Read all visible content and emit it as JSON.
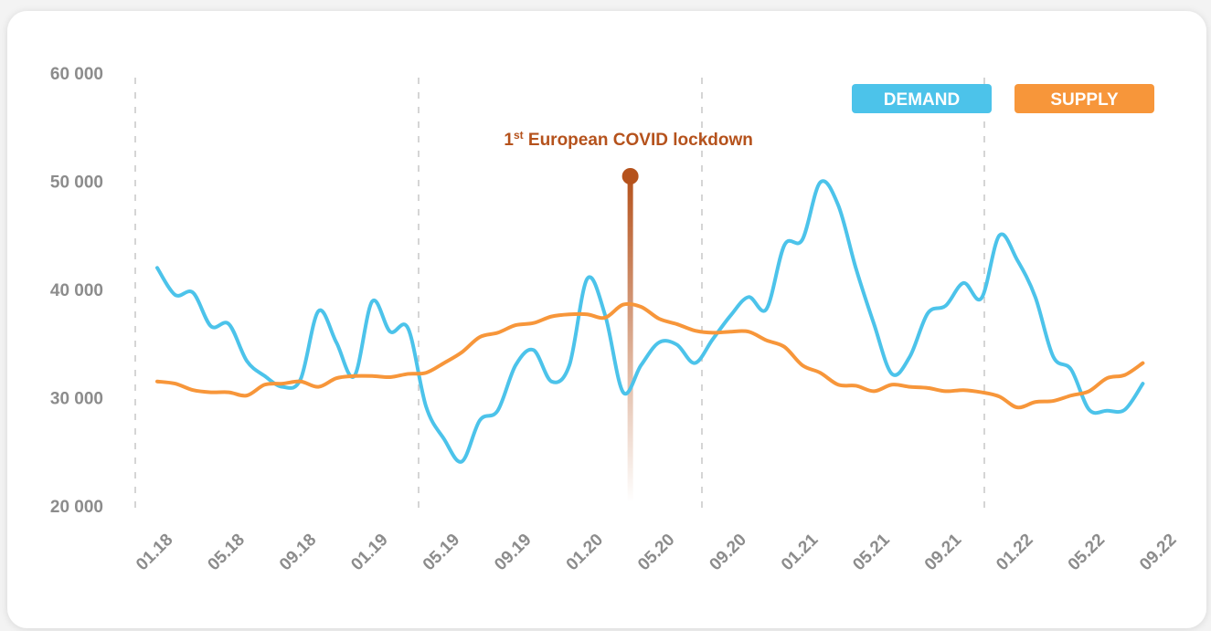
{
  "chart_data": {
    "type": "line",
    "x": [
      0,
      1,
      2,
      3,
      4,
      5,
      6,
      7,
      8,
      9,
      10,
      11,
      12,
      13,
      14,
      15,
      16,
      17,
      18,
      19,
      20,
      21,
      22,
      23,
      24,
      25,
      26,
      27,
      28,
      29,
      30,
      31,
      32,
      33,
      34,
      35,
      36,
      37,
      38,
      39,
      40,
      41,
      42,
      43,
      44,
      45,
      46,
      47,
      48,
      49,
      50,
      51,
      52,
      53,
      54,
      55
    ],
    "series": [
      {
        "name": "DEMAND",
        "color": "#4cc3ea",
        "values": [
          42000,
          39500,
          39700,
          36600,
          36800,
          33400,
          32000,
          31000,
          31700,
          38000,
          35100,
          32000,
          38900,
          36100,
          36400,
          29200,
          26200,
          24100,
          27900,
          28800,
          33000,
          34400,
          31500,
          33000,
          41000,
          37600,
          30500,
          33000,
          35100,
          34900,
          33200,
          35400,
          37600,
          39300,
          38200,
          44100,
          44600,
          49900,
          47800,
          41900,
          36800,
          32200,
          33800,
          37800,
          38500,
          40600,
          39200,
          45000,
          42700,
          39300,
          33800,
          32600,
          28900,
          28800,
          28900,
          31300
        ]
      },
      {
        "name": "SUPPLY",
        "color": "#f7963a",
        "values": [
          31500,
          31300,
          30700,
          30500,
          30500,
          30200,
          31200,
          31300,
          31500,
          31000,
          31800,
          32000,
          32000,
          31900,
          32200,
          32300,
          33200,
          34200,
          35600,
          36000,
          36700,
          36900,
          37500,
          37700,
          37700,
          37400,
          38600,
          38400,
          37300,
          36800,
          36200,
          36000,
          36100,
          36100,
          35300,
          34700,
          33000,
          32300,
          31200,
          31100,
          30600,
          31200,
          31000,
          30900,
          30600,
          30700,
          30500,
          30100,
          29100,
          29600,
          29700,
          30200,
          30600,
          31800,
          32100,
          33200
        ]
      }
    ],
    "xlim": [
      0,
      56
    ],
    "xticks": [
      {
        "value": 0,
        "label": "01.18"
      },
      {
        "value": 4,
        "label": "05.18"
      },
      {
        "value": 8,
        "label": "09.18"
      },
      {
        "value": 12,
        "label": "01.19"
      },
      {
        "value": 16,
        "label": "05.19"
      },
      {
        "value": 20,
        "label": "09.19"
      },
      {
        "value": 24,
        "label": "01.20"
      },
      {
        "value": 28,
        "label": "05.20"
      },
      {
        "value": 32,
        "label": "09.20"
      },
      {
        "value": 36,
        "label": "01.21"
      },
      {
        "value": 40,
        "label": "05.21"
      },
      {
        "value": 44,
        "label": "09.21"
      },
      {
        "value": 48,
        "label": "01.22"
      },
      {
        "value": 52,
        "label": "05.22"
      },
      {
        "value": 56,
        "label": "09.22"
      }
    ],
    "ylim": [
      20000,
      60000
    ],
    "yticks": [
      {
        "value": 20000,
        "label": "20 000"
      },
      {
        "value": 30000,
        "label": "30 000"
      },
      {
        "value": 40000,
        "label": "40 000"
      },
      {
        "value": 50000,
        "label": "50 000"
      },
      {
        "value": 60000,
        "label": "60 000"
      }
    ],
    "legend": "top-right",
    "annotation": {
      "x": 26.4,
      "color": "#b5521c",
      "parts": [
        "1",
        "st",
        " European COVID lockdown"
      ]
    }
  }
}
